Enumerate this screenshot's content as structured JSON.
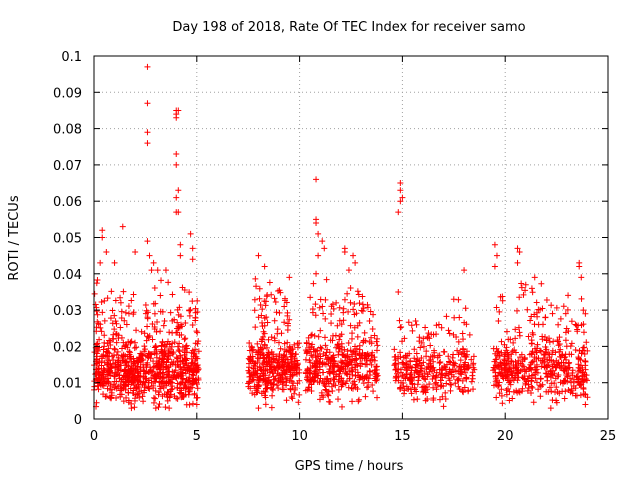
{
  "chart_data": {
    "type": "scatter",
    "title": "Day 198 of 2018, Rate Of TEC Index for receiver samo",
    "xlabel": "GPS time / hours",
    "ylabel": "ROTI / TECUs",
    "xlim": [
      0,
      25
    ],
    "ylim": [
      0,
      0.1
    ],
    "x_ticks": [
      "0",
      "5",
      "10",
      "15",
      "20",
      "25"
    ],
    "y_ticks": [
      "0",
      "0.01",
      "0.02",
      "0.03",
      "0.04",
      "0.05",
      "0.06",
      "0.07",
      "0.08",
      "0.09",
      "0.1"
    ],
    "grid": true,
    "marker": "+",
    "color": "#ff0000",
    "series": [
      {
        "name": "ROTI",
        "clusters": [
          {
            "x0": 0.0,
            "x1": 5.1,
            "y_center": 0.013,
            "y_spread": 0.007,
            "count": 700
          },
          {
            "x0": 0.0,
            "x1": 5.1,
            "y_center": 0.026,
            "y_spread": 0.01,
            "count": 160
          },
          {
            "x0": 7.5,
            "x1": 10.0,
            "y_center": 0.014,
            "y_spread": 0.007,
            "count": 340
          },
          {
            "x0": 7.8,
            "x1": 9.5,
            "y_center": 0.03,
            "y_spread": 0.008,
            "count": 50
          },
          {
            "x0": 10.3,
            "x1": 13.8,
            "y_center": 0.014,
            "y_spread": 0.007,
            "count": 360
          },
          {
            "x0": 10.5,
            "x1": 13.6,
            "y_center": 0.028,
            "y_spread": 0.008,
            "count": 70
          },
          {
            "x0": 14.6,
            "x1": 18.5,
            "y_center": 0.013,
            "y_spread": 0.006,
            "count": 300
          },
          {
            "x0": 14.8,
            "x1": 18.3,
            "y_center": 0.025,
            "y_spread": 0.006,
            "count": 40
          },
          {
            "x0": 19.4,
            "x1": 24.0,
            "y_center": 0.014,
            "y_spread": 0.007,
            "count": 420
          },
          {
            "x0": 19.5,
            "x1": 23.9,
            "y_center": 0.028,
            "y_spread": 0.008,
            "count": 70
          }
        ],
        "points": [
          {
            "x": 2.6,
            "y": 0.097
          },
          {
            "x": 2.6,
            "y": 0.087
          },
          {
            "x": 2.6,
            "y": 0.079
          },
          {
            "x": 2.6,
            "y": 0.076
          },
          {
            "x": 2.6,
            "y": 0.049
          },
          {
            "x": 2.7,
            "y": 0.045
          },
          {
            "x": 2.9,
            "y": 0.043
          },
          {
            "x": 2.8,
            "y": 0.041
          },
          {
            "x": 4.0,
            "y": 0.085
          },
          {
            "x": 4.0,
            "y": 0.084
          },
          {
            "x": 4.1,
            "y": 0.085
          },
          {
            "x": 4.0,
            "y": 0.083
          },
          {
            "x": 4.0,
            "y": 0.073
          },
          {
            "x": 4.0,
            "y": 0.07
          },
          {
            "x": 4.1,
            "y": 0.063
          },
          {
            "x": 4.0,
            "y": 0.061
          },
          {
            "x": 4.0,
            "y": 0.057
          },
          {
            "x": 4.1,
            "y": 0.057
          },
          {
            "x": 4.2,
            "y": 0.048
          },
          {
            "x": 4.2,
            "y": 0.045
          },
          {
            "x": 4.7,
            "y": 0.051
          },
          {
            "x": 4.8,
            "y": 0.047
          },
          {
            "x": 4.8,
            "y": 0.044
          },
          {
            "x": 0.4,
            "y": 0.052
          },
          {
            "x": 0.4,
            "y": 0.05
          },
          {
            "x": 0.3,
            "y": 0.043
          },
          {
            "x": 0.6,
            "y": 0.046
          },
          {
            "x": 1.4,
            "y": 0.053
          },
          {
            "x": 1.0,
            "y": 0.043
          },
          {
            "x": 2.0,
            "y": 0.046
          },
          {
            "x": 3.1,
            "y": 0.041
          },
          {
            "x": 3.5,
            "y": 0.041
          },
          {
            "x": 8.0,
            "y": 0.045
          },
          {
            "x": 8.3,
            "y": 0.042
          },
          {
            "x": 9.5,
            "y": 0.039
          },
          {
            "x": 10.8,
            "y": 0.066
          },
          {
            "x": 10.8,
            "y": 0.055
          },
          {
            "x": 10.8,
            "y": 0.054
          },
          {
            "x": 10.9,
            "y": 0.051
          },
          {
            "x": 11.1,
            "y": 0.049
          },
          {
            "x": 11.2,
            "y": 0.047
          },
          {
            "x": 10.9,
            "y": 0.045
          },
          {
            "x": 10.8,
            "y": 0.04
          },
          {
            "x": 12.2,
            "y": 0.047
          },
          {
            "x": 12.2,
            "y": 0.046
          },
          {
            "x": 12.6,
            "y": 0.045
          },
          {
            "x": 12.7,
            "y": 0.043
          },
          {
            "x": 12.4,
            "y": 0.041
          },
          {
            "x": 14.9,
            "y": 0.065
          },
          {
            "x": 14.9,
            "y": 0.063
          },
          {
            "x": 15.0,
            "y": 0.061
          },
          {
            "x": 14.9,
            "y": 0.06
          },
          {
            "x": 14.8,
            "y": 0.057
          },
          {
            "x": 14.8,
            "y": 0.035
          },
          {
            "x": 18.0,
            "y": 0.041
          },
          {
            "x": 17.5,
            "y": 0.033
          },
          {
            "x": 19.5,
            "y": 0.048
          },
          {
            "x": 19.6,
            "y": 0.045
          },
          {
            "x": 19.5,
            "y": 0.042
          },
          {
            "x": 20.6,
            "y": 0.047
          },
          {
            "x": 20.7,
            "y": 0.046
          },
          {
            "x": 20.6,
            "y": 0.043
          },
          {
            "x": 21.0,
            "y": 0.037
          },
          {
            "x": 21.3,
            "y": 0.036
          },
          {
            "x": 23.6,
            "y": 0.043
          },
          {
            "x": 23.6,
            "y": 0.042
          },
          {
            "x": 23.7,
            "y": 0.039
          },
          {
            "x": 23.8,
            "y": 0.03
          },
          {
            "x": 23.9,
            "y": 0.029
          },
          {
            "x": 24.0,
            "y": 0.006
          },
          {
            "x": 23.9,
            "y": 0.004
          },
          {
            "x": 8.0,
            "y": 0.003
          },
          {
            "x": 5.0,
            "y": 0.004
          }
        ]
      }
    ]
  }
}
